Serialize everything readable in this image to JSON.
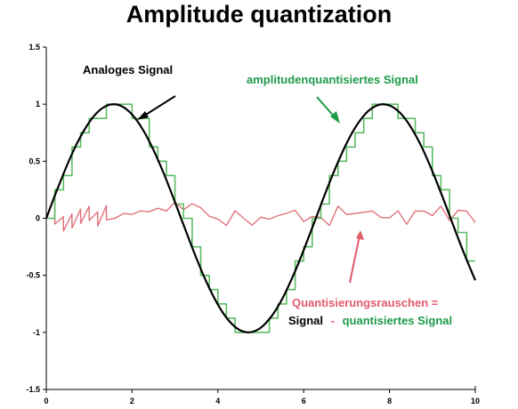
{
  "colors": {
    "analog": "#000000",
    "quantized": "#5dbb63",
    "noise": "#e0737c",
    "green_text": "#1e9a49",
    "pink_text": "#e15b6b",
    "axis": "#000000"
  },
  "chart_data": {
    "type": "line",
    "title": "Amplitude quantization",
    "xlabel": "",
    "ylabel": "",
    "xlim": [
      0,
      10
    ],
    "ylim": [
      -1.5,
      1.5
    ],
    "grid": false,
    "x_ticks": [
      0,
      2,
      4,
      6,
      8,
      10
    ],
    "x_tick_labels": [
      "0",
      "2",
      "4",
      "6",
      "8",
      "10"
    ],
    "y_ticks": [
      1.5,
      1,
      0.5,
      0,
      -0.5,
      -1,
      -1.5
    ],
    "y_tick_labels": [
      "1.5",
      "1",
      "0.5",
      "0",
      "-0.5",
      "-1",
      "-1.5"
    ],
    "quantization_step": 0.125,
    "sample_step": 0.2,
    "series": [
      {
        "name": "Analoges Signal",
        "style": "smooth",
        "x": [
          0,
          0.25,
          0.5,
          0.75,
          1,
          1.25,
          1.5,
          1.75,
          2,
          2.25,
          2.5,
          2.75,
          3,
          3.25,
          3.5,
          3.75,
          4,
          4.25,
          4.5,
          4.75,
          5,
          5.25,
          5.5,
          5.75,
          6,
          6.25,
          6.5,
          6.75,
          7,
          7.25,
          7.5,
          7.75,
          8,
          8.25,
          8.5,
          8.75,
          9,
          9.25,
          9.5,
          9.75,
          10
        ],
        "values": [
          0,
          0.247,
          0.479,
          0.682,
          0.841,
          0.949,
          0.997,
          0.984,
          0.909,
          0.778,
          0.598,
          0.382,
          0.141,
          -0.108,
          -0.351,
          -0.572,
          -0.757,
          -0.895,
          -0.978,
          -0.999,
          -0.959,
          -0.859,
          -0.706,
          -0.508,
          -0.279,
          -0.033,
          0.215,
          0.45,
          0.657,
          0.823,
          0.938,
          0.994,
          0.989,
          0.923,
          0.798,
          0.625,
          0.412,
          0.174,
          -0.075,
          -0.319,
          -0.544
        ]
      },
      {
        "name": "amplitudenquantisiertes Signal",
        "style": "step",
        "x": [
          0,
          0.2,
          0.4,
          0.6,
          0.8,
          1,
          1.2,
          1.4,
          1.6,
          1.8,
          2,
          2.2,
          2.4,
          2.6,
          2.8,
          3,
          3.2,
          3.4,
          3.6,
          3.8,
          4,
          4.2,
          4.4,
          4.6,
          4.8,
          5,
          5.2,
          5.4,
          5.6,
          5.8,
          6,
          6.2,
          6.4,
          6.6,
          6.8,
          7,
          7.2,
          7.4,
          7.6,
          7.8,
          8,
          8.2,
          8.4,
          8.6,
          8.8,
          9,
          9.2,
          9.4,
          9.6,
          9.8
        ],
        "values": [
          0,
          0.25,
          0.375,
          0.625,
          0.75,
          0.875,
          0.875,
          1,
          1,
          1,
          0.875,
          0.875,
          0.625,
          0.5,
          0.375,
          0.125,
          0,
          -0.25,
          -0.5,
          -0.625,
          -0.75,
          -0.875,
          -1,
          -1,
          -1,
          -1,
          -0.875,
          -0.75,
          -0.625,
          -0.375,
          -0.25,
          0,
          0.125,
          0.375,
          0.5,
          0.625,
          0.75,
          0.875,
          1,
          1,
          1,
          0.875,
          0.875,
          0.75,
          0.625,
          0.375,
          0.25,
          0,
          -0.125,
          -0.375
        ]
      },
      {
        "name": "Quantisierungsrauschen",
        "style": "line",
        "x": [
          0,
          0.2,
          0.2,
          0.4,
          0.4,
          0.6,
          0.6,
          0.8,
          0.8,
          1,
          1,
          1.2,
          1.2,
          1.4,
          1.4,
          1.6,
          1.6,
          1.8,
          1.8,
          2,
          2,
          2.2,
          2.2,
          2.4,
          2.4,
          2.6,
          2.6,
          2.8,
          2.8,
          3,
          3,
          3.2,
          3.2,
          3.4,
          3.4,
          3.6,
          3.6,
          3.8,
          3.8,
          4,
          4,
          4.2,
          4.2,
          4.4,
          4.4,
          4.6,
          4.6,
          4.8,
          4.8,
          5,
          5,
          5.2,
          5.2,
          5.4,
          5.4,
          5.6,
          5.6,
          5.8,
          5.8,
          6,
          6,
          6.2,
          6.2,
          6.4,
          6.4,
          6.6,
          6.6,
          6.8,
          6.8,
          7,
          7,
          7.2,
          7.2,
          7.4,
          7.4,
          7.6,
          7.6,
          7.8,
          7.8,
          8,
          8,
          8.2,
          8.2,
          8.4,
          8.4,
          8.6,
          8.6,
          8.8,
          8.8,
          9,
          9,
          9.2,
          9.2,
          9.4,
          9.4,
          9.6,
          9.6,
          9.8,
          9.8,
          10
        ],
        "values": [
          0,
          0.199,
          -0.051,
          0.014,
          -0.111,
          0.04,
          -0.085,
          0.08,
          -0.045,
          0.106,
          -0.019,
          0.057,
          -0.068,
          0.111,
          -0.014,
          0,
          0,
          0.042,
          0.042,
          0.034,
          0.034,
          0.065,
          0.065,
          0.057,
          0.057,
          0.088,
          0.088,
          0.065,
          0.065,
          0.141,
          0.141,
          0.075,
          0.075,
          0.128,
          0.128,
          0.093,
          0.093,
          0.018,
          0.018,
          -0.007,
          -0.007,
          -0.063,
          -0.063,
          0.066,
          0.066,
          0,
          0,
          -0.06,
          -0.06,
          0.01,
          0.01,
          -0.008,
          -0.008,
          0.023,
          0.023,
          0.044,
          0.044,
          0.07,
          0.07,
          -0.029,
          -0.029,
          0.016,
          0.016,
          0.007,
          0.007,
          -0.062,
          -0.062,
          0.107,
          0.107,
          0.032,
          0.032,
          0.043,
          0.043,
          0.052,
          0.052,
          0.064,
          0.064,
          0.007,
          0.007,
          0.003,
          0.003,
          0.066,
          0.066,
          -0.052,
          -0.052,
          0.064,
          0.064,
          0.063,
          0.063,
          0.024,
          0.024,
          0.107,
          0.107,
          -0.021,
          -0.021,
          0.07,
          0.07,
          0.062,
          0.062,
          -0.037
        ]
      }
    ],
    "annotations": [
      "Analoges Signal",
      "amplitudenquantisiertes Signal",
      "Quantisierungsrauschen =",
      "Signal",
      "-",
      "quantisiertes Signal"
    ]
  },
  "text": {
    "title": "Amplitude quantization",
    "analog_label": "Analoges Signal",
    "quantized_label": "amplitudenquantisiertes Signal",
    "noise_label_line1": "Quantisierungsrauschen =",
    "noise_label_signal": "Signal",
    "noise_label_dash": "-",
    "noise_label_quantized": "quantisiertes Signal"
  }
}
